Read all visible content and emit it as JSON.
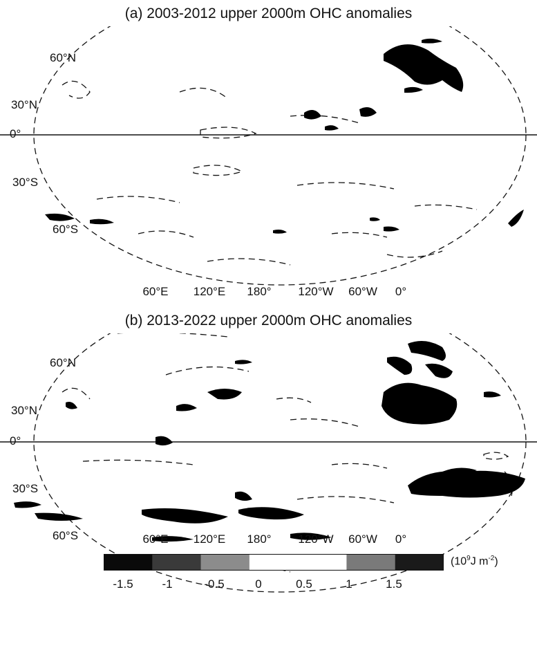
{
  "panel_a": {
    "title": "(a) 2003-2012 upper 2000m OHC anomalies",
    "lat_labels": [
      "60°N",
      "30°N",
      "0°",
      "30°S",
      "60°S"
    ],
    "lon_labels": [
      "60°E",
      "120°E",
      "180°",
      "120°W",
      "60°W",
      "0°"
    ]
  },
  "panel_b": {
    "title": "(b) 2013-2022 upper 2000m OHC anomalies",
    "lat_labels": [
      "60°N",
      "30°N",
      "0°",
      "30°S",
      "60°S"
    ],
    "lon_labels": [
      "60°E",
      "120°E",
      "180°",
      "120°W",
      "60°W",
      "0°"
    ]
  },
  "colorbar": {
    "ticks": [
      "-1.5",
      "-1",
      "-0.5",
      "0",
      "0.5",
      "1",
      "1.5"
    ],
    "unit_base": "(10",
    "unit_exp": "9",
    "unit_mid": "J m",
    "unit_exp2": "-2",
    "unit_end": ")",
    "colors": [
      "#0a0a0a",
      "#3a3a3a",
      "#8c8c8c",
      "#ffffff",
      "#ffffff",
      "#7a7a7a",
      "#1a1a1a"
    ]
  }
}
